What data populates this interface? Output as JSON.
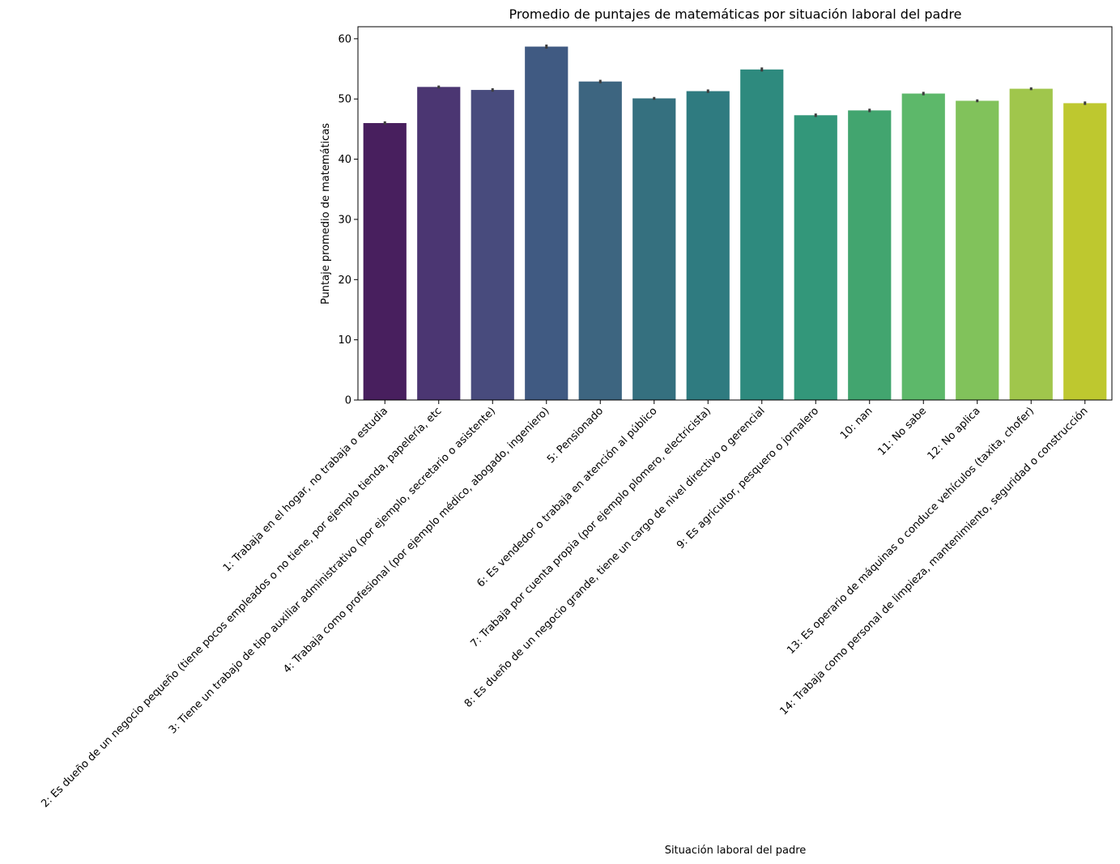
{
  "chart_data": {
    "type": "bar",
    "title": "Promedio de puntajes de matemáticas por situación laboral del padre",
    "xlabel": "Situación laboral del padre",
    "ylabel": "Puntaje promedio de matemáticas",
    "ylim": [
      0,
      62
    ],
    "yticks": [
      0,
      10,
      20,
      30,
      40,
      50,
      60
    ],
    "grid": false,
    "legend": "none",
    "categories": [
      "1: Trabaja en el hogar, no trabaja o estudia",
      "2: Es dueño de un negocio pequeño (tiene pocos empleados o no tiene, por ejemplo tienda, papelería, etc",
      "3: Tiene un trabajo de tipo auxiliar administrativo (por ejemplo, secretario o asistente)",
      "4: Trabaja como profesional (por ejemplo médico, abogado, ingeniero)",
      "5: Pensionado",
      "6: Es vendedor o trabaja en atención al público",
      "7: Trabaja por cuenta propia (por ejemplo plomero, electricista)",
      "8: Es dueño de un negocio grande, tiene un cargo de nivel directivo o gerencial",
      "9: Es agricultor, pesquero o jornalero",
      "10: nan",
      "11: No sabe",
      "12: No aplica",
      "13: Es operario de máquinas o conduce vehículos (taxita, chofer)",
      "14: Trabaja como personal de limpieza, mantenimiento, seguridad o construcción"
    ],
    "values": [
      46.0,
      52.0,
      51.5,
      58.7,
      52.9,
      50.1,
      51.3,
      54.9,
      47.3,
      48.1,
      50.9,
      49.7,
      51.7,
      49.3
    ],
    "error": [
      0.15,
      0.1,
      0.15,
      0.2,
      0.15,
      0.1,
      0.15,
      0.2,
      0.15,
      0.15,
      0.15,
      0.1,
      0.1,
      0.15
    ],
    "colors": [
      "#481f5e",
      "#4b3672",
      "#484b7d",
      "#405a82",
      "#3d6580",
      "#35707f",
      "#2f7b80",
      "#2e8a7e",
      "#33977a",
      "#42a56f",
      "#5db86a",
      "#81c25b",
      "#a0c64c",
      "#bec82f"
    ],
    "errorbar_color": "#3d3d3d"
  }
}
